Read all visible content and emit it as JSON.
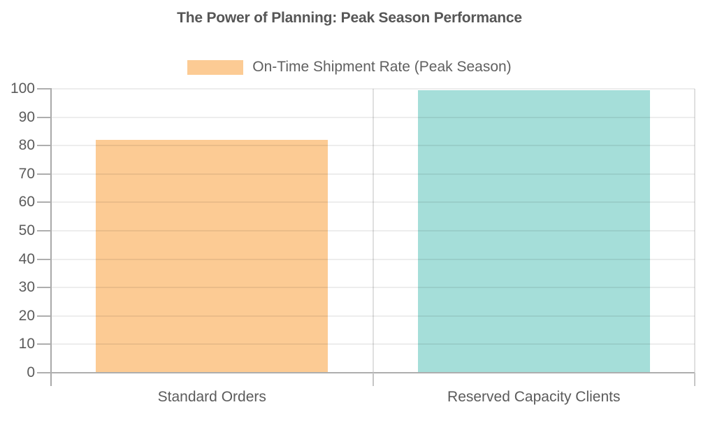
{
  "title": "The Power of Planning: Peak Season Performance",
  "legend": {
    "label": "On-Time Shipment Rate (Peak Season)",
    "swatch_color": "#FCCB94"
  },
  "colors": {
    "bar_standard": "#FCCB94",
    "bar_reserved": "#A5DED9",
    "axis": "#aeaeae",
    "grid": "#ebebeb",
    "text": "#5b5b5b"
  },
  "chart_data": {
    "type": "bar",
    "title": "The Power of Planning: Peak Season Performance",
    "categories": [
      "Standard Orders",
      "Reserved Capacity Clients"
    ],
    "series": [
      {
        "name": "On-Time Shipment Rate (Peak Season)",
        "values": [
          82,
          99.5
        ]
      }
    ],
    "bar_colors": [
      "#FCCB94",
      "#A5DED9"
    ],
    "xlabel": "",
    "ylabel": "",
    "ylim": [
      0,
      100
    ],
    "yticks": [
      0,
      10,
      20,
      30,
      40,
      50,
      60,
      70,
      80,
      90,
      100
    ],
    "grid": true,
    "legend_position": "top-center"
  }
}
